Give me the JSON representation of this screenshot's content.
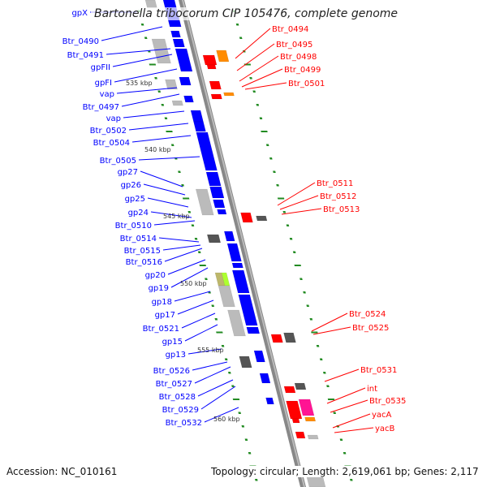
{
  "title": "Bartonella tribocorum CIP 105476, complete genome",
  "footer": {
    "accession": "Accession: NC_010161",
    "summary": "Topology: circular; Length: 2,619,061 bp; Genes: 2,117"
  },
  "colors": {
    "forward": "#0000ff",
    "reverse": "#ff0000",
    "backbone": "#888888",
    "tick": "#228b22",
    "orange": "#ff8c00",
    "pink": "#ff1493",
    "gray": "#bbbbbb",
    "dark": "#555555"
  },
  "left_labels": [
    "gpX",
    "Btr_0490",
    "Btr_0491",
    "gpFII",
    "gpFI",
    "vap",
    "Btr_0497",
    "vap",
    "Btr_0502",
    "Btr_0504",
    "Btr_0505",
    "gp27",
    "gp26",
    "gp25",
    "gp24",
    "Btr_0510",
    "Btr_0514",
    "Btr_0515",
    "Btr_0516",
    "gp20",
    "gp19",
    "gp18",
    "gp17",
    "Btr_0521",
    "gp15",
    "gp13",
    "Btr_0526",
    "Btr_0527",
    "Btr_0528",
    "Btr_0529",
    "Btr_0532"
  ],
  "right_labels": [
    "Btr_0494",
    "Btr_0495",
    "Btr_0498",
    "Btr_0499",
    "Btr_0501",
    "Btr_0511",
    "Btr_0512",
    "Btr_0513",
    "Btr_0524",
    "Btr_0525",
    "Btr_0531",
    "int",
    "Btr_0535",
    "yacA",
    "yacB"
  ],
  "scale_ticks": [
    "535 kbp",
    "540 kbp",
    "545 kbp",
    "550 kbp",
    "555 kbp",
    "560 kbp"
  ]
}
